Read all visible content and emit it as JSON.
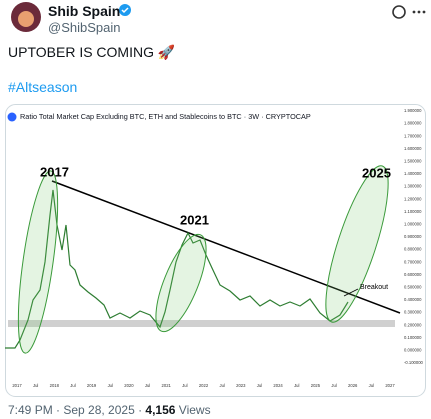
{
  "header": {
    "name": "Shib Spain",
    "handle": "@ShibSpain"
  },
  "post": {
    "text": "UPTOBER IS COMING 🚀",
    "hashtag": "#Altseason"
  },
  "image": {
    "title": "Ratio Total Market Cap Excluding BTC, ETH and Stablecoins to BTC · 3W · CRYPTOCAP",
    "annotations": [
      "2017",
      "2021",
      "2025",
      "Breakout"
    ],
    "y_ticks": [
      "1.900000",
      "1.800000",
      "1.700000",
      "1.600000",
      "1.500000",
      "1.400000",
      "1.300000",
      "1.200000",
      "1.100000",
      "1.000000",
      "0.900000",
      "0.800000",
      "0.700000",
      "0.600000",
      "0.500000",
      "0.400000",
      "0.300000",
      "0.200000",
      "0.100000",
      "0.000000",
      "-0.100000"
    ],
    "x_ticks": [
      "2017",
      "Jul",
      "2018",
      "Jul",
      "2019",
      "Jul",
      "2020",
      "Jul",
      "2021",
      "Jul",
      "2022",
      "Jul",
      "2023",
      "Jul",
      "2024",
      "Jul",
      "2025",
      "Jul",
      "2026",
      "Jul",
      "2027"
    ]
  },
  "footer": {
    "time": "7:49 PM · Sep 28, 2025 · ",
    "views_count": "4,156",
    "views_label": "Views"
  }
}
